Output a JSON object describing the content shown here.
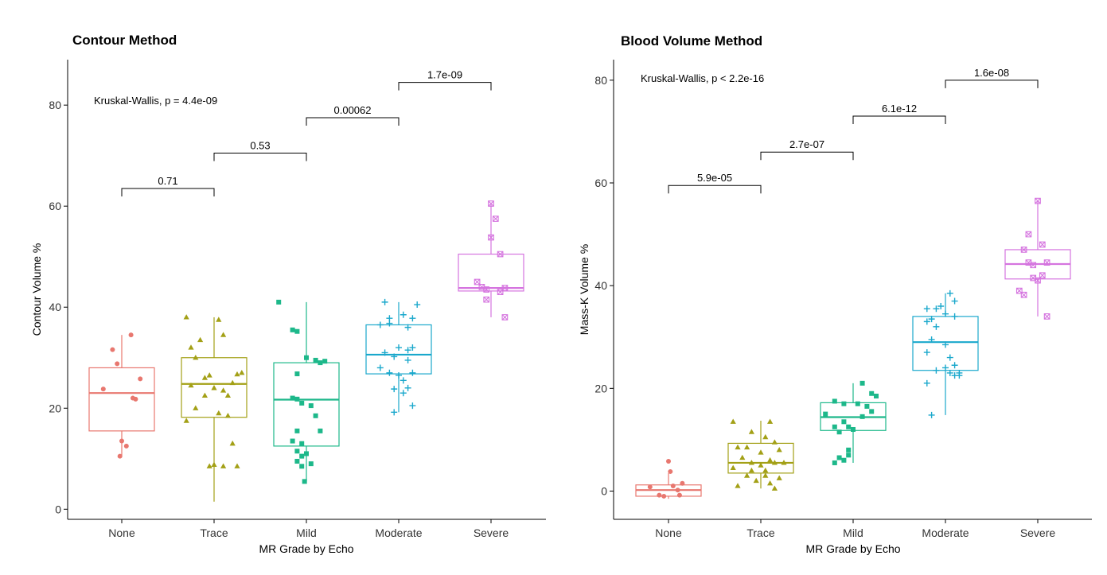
{
  "chart_data": [
    {
      "type": "boxplot",
      "title": "Contour Method",
      "xlabel": "MR Grade by Echo",
      "ylabel": "Contour Volume %",
      "ylim": [
        -2,
        89
      ],
      "yticks": [
        0,
        20,
        40,
        60,
        80
      ],
      "categories": [
        "None",
        "Trace",
        "Mild",
        "Moderate",
        "Severe"
      ],
      "colors": [
        "#E8776F",
        "#A3A016",
        "#1DB88A",
        "#1AA8CC",
        "#D574DF"
      ],
      "markers": [
        "circle",
        "triangle",
        "square",
        "plus",
        "boxx"
      ],
      "test_label": "Kruskal-Wallis, p = 4.4e-09",
      "boxes": [
        {
          "q1": 15.5,
          "median": 23.0,
          "q3": 28.0,
          "whisker_low": 10.5,
          "whisker_high": 34.5
        },
        {
          "q1": 18.2,
          "median": 24.8,
          "q3": 30.0,
          "whisker_low": 1.5,
          "whisker_high": 38.0
        },
        {
          "q1": 12.5,
          "median": 21.7,
          "q3": 29.0,
          "whisker_low": 5.5,
          "whisker_high": 41.0
        },
        {
          "q1": 26.8,
          "median": 30.6,
          "q3": 36.5,
          "whisker_low": 19.2,
          "whisker_high": 41.0
        },
        {
          "q1": 43.2,
          "median": 43.8,
          "q3": 50.5,
          "whisker_low": 38.0,
          "whisker_high": 60.5
        }
      ],
      "points": [
        [
          [
            -0.2,
            23.8
          ],
          [
            -0.1,
            31.6
          ],
          [
            0.0,
            13.5
          ],
          [
            0.1,
            34.5
          ],
          [
            0.15,
            21.8
          ],
          [
            0.2,
            25.8
          ],
          [
            -0.05,
            28.8
          ],
          [
            0.05,
            12.5
          ],
          [
            -0.02,
            10.5
          ],
          [
            0.12,
            22.0
          ]
        ],
        [
          [
            -0.3,
            38.0
          ],
          [
            -0.25,
            32.0
          ],
          [
            -0.2,
            30.0
          ],
          [
            -0.15,
            33.5
          ],
          [
            -0.1,
            26.0
          ],
          [
            -0.05,
            26.5
          ],
          [
            0.05,
            37.5
          ],
          [
            0.1,
            34.5
          ],
          [
            0.15,
            22.5
          ],
          [
            0.2,
            25.0
          ],
          [
            0.25,
            26.7
          ],
          [
            0.3,
            27.0
          ],
          [
            -0.3,
            17.5
          ],
          [
            -0.25,
            24.5
          ],
          [
            -0.2,
            20.0
          ],
          [
            -0.1,
            22.5
          ],
          [
            0.0,
            24.0
          ],
          [
            0.05,
            19.0
          ],
          [
            0.1,
            23.5
          ],
          [
            0.15,
            18.5
          ],
          [
            0.2,
            13.0
          ],
          [
            0.25,
            8.5
          ],
          [
            -0.05,
            8.5
          ],
          [
            0.0,
            8.8
          ],
          [
            0.1,
            8.5
          ]
        ],
        [
          [
            -0.3,
            41.0
          ],
          [
            -0.15,
            35.5
          ],
          [
            -0.1,
            35.2
          ],
          [
            -0.1,
            26.8
          ],
          [
            -0.15,
            22.0
          ],
          [
            -0.1,
            21.8
          ],
          [
            0.0,
            30.0
          ],
          [
            0.1,
            29.5
          ],
          [
            0.15,
            29.0
          ],
          [
            0.2,
            29.3
          ],
          [
            -0.05,
            21.0
          ],
          [
            0.05,
            20.5
          ],
          [
            0.1,
            18.5
          ],
          [
            -0.1,
            15.5
          ],
          [
            0.15,
            15.5
          ],
          [
            -0.15,
            13.5
          ],
          [
            -0.05,
            13.0
          ],
          [
            -0.1,
            11.5
          ],
          [
            -0.05,
            10.5
          ],
          [
            0.0,
            11.0
          ],
          [
            -0.1,
            9.5
          ],
          [
            -0.05,
            8.5
          ],
          [
            0.05,
            9.0
          ],
          [
            -0.02,
            5.5
          ]
        ],
        [
          [
            -0.15,
            41.0
          ],
          [
            0.2,
            40.5
          ],
          [
            0.05,
            38.5
          ],
          [
            -0.1,
            37.8
          ],
          [
            0.15,
            37.8
          ],
          [
            -0.2,
            36.5
          ],
          [
            -0.1,
            36.8
          ],
          [
            0.1,
            36.0
          ],
          [
            0.0,
            32.0
          ],
          [
            0.15,
            32.0
          ],
          [
            0.1,
            31.5
          ],
          [
            -0.15,
            31.0
          ],
          [
            -0.05,
            30.2
          ],
          [
            0.1,
            29.5
          ],
          [
            -0.2,
            28.0
          ],
          [
            -0.1,
            27.0
          ],
          [
            0.15,
            27.0
          ],
          [
            0.0,
            26.5
          ],
          [
            0.05,
            25.5
          ],
          [
            -0.05,
            23.8
          ],
          [
            0.1,
            24.0
          ],
          [
            0.05,
            23.0
          ],
          [
            0.15,
            20.5
          ],
          [
            -0.05,
            19.2
          ]
        ],
        [
          [
            0.0,
            60.5
          ],
          [
            0.05,
            57.5
          ],
          [
            0.0,
            53.8
          ],
          [
            0.1,
            50.5
          ],
          [
            -0.15,
            45.0
          ],
          [
            -0.1,
            44.0
          ],
          [
            -0.05,
            43.5
          ],
          [
            0.15,
            43.8
          ],
          [
            0.1,
            43.0
          ],
          [
            -0.05,
            41.5
          ],
          [
            0.15,
            38.0
          ]
        ]
      ],
      "brackets": [
        {
          "from": 0,
          "to": 1,
          "y": 63.5,
          "label": "0.71"
        },
        {
          "from": 1,
          "to": 2,
          "y": 70.5,
          "label": "0.53"
        },
        {
          "from": 2,
          "to": 3,
          "y": 77.5,
          "label": "0.00062"
        },
        {
          "from": 3,
          "to": 4,
          "y": 84.5,
          "label": "1.7e-09"
        }
      ]
    },
    {
      "type": "boxplot",
      "title": "Blood Volume Method",
      "xlabel": "MR Grade by Echo",
      "ylabel": "Mass-K Volume %",
      "ylim": [
        -5.5,
        84
      ],
      "yticks": [
        0,
        20,
        40,
        60,
        80
      ],
      "categories": [
        "None",
        "Trace",
        "Mild",
        "Moderate",
        "Severe"
      ],
      "colors": [
        "#E8776F",
        "#A3A016",
        "#1DB88A",
        "#1AA8CC",
        "#D574DF"
      ],
      "markers": [
        "circle",
        "triangle",
        "square",
        "plus",
        "boxx"
      ],
      "test_label": "Kruskal-Wallis, p < 2.2e-16",
      "boxes": [
        {
          "q1": -1.0,
          "median": 0.2,
          "q3": 1.2,
          "whisker_low": -1.5,
          "whisker_high": 3.5
        },
        {
          "q1": 3.5,
          "median": 5.5,
          "q3": 9.3,
          "whisker_low": 0.5,
          "whisker_high": 13.7
        },
        {
          "q1": 11.8,
          "median": 14.4,
          "q3": 17.2,
          "whisker_low": 5.5,
          "whisker_high": 21.0
        },
        {
          "q1": 23.5,
          "median": 29.0,
          "q3": 34.0,
          "whisker_low": 14.8,
          "whisker_high": 38.5
        },
        {
          "q1": 41.3,
          "median": 44.2,
          "q3": 47.0,
          "whisker_low": 34.0,
          "whisker_high": 56.5
        }
      ],
      "points": [
        [
          [
            0.0,
            5.8
          ],
          [
            0.02,
            3.8
          ],
          [
            -0.2,
            0.8
          ],
          [
            0.05,
            1.0
          ],
          [
            0.15,
            1.5
          ],
          [
            -0.1,
            -0.8
          ],
          [
            0.12,
            -0.8
          ],
          [
            -0.05,
            -1.0
          ],
          [
            0.1,
            0.2
          ]
        ],
        [
          [
            -0.3,
            13.5
          ],
          [
            0.1,
            13.5
          ],
          [
            -0.1,
            11.5
          ],
          [
            0.05,
            10.5
          ],
          [
            0.15,
            9.5
          ],
          [
            -0.25,
            8.5
          ],
          [
            -0.15,
            8.5
          ],
          [
            0.2,
            8.0
          ],
          [
            0.0,
            7.5
          ],
          [
            -0.2,
            6.5
          ],
          [
            0.1,
            6.0
          ],
          [
            0.15,
            5.5
          ],
          [
            0.25,
            5.5
          ],
          [
            -0.3,
            4.5
          ],
          [
            -0.1,
            4.0
          ],
          [
            0.0,
            5.0
          ],
          [
            0.05,
            4.0
          ],
          [
            -0.15,
            3.0
          ],
          [
            0.2,
            2.5
          ],
          [
            -0.05,
            2.0
          ],
          [
            0.1,
            1.5
          ],
          [
            -0.25,
            1.0
          ],
          [
            0.15,
            0.5
          ],
          [
            -0.1,
            5.5
          ],
          [
            0.05,
            3.0
          ]
        ],
        [
          [
            0.1,
            21.0
          ],
          [
            0.2,
            19.0
          ],
          [
            0.25,
            18.5
          ],
          [
            -0.2,
            17.5
          ],
          [
            -0.1,
            17.0
          ],
          [
            0.05,
            17.0
          ],
          [
            0.15,
            16.5
          ],
          [
            0.2,
            15.5
          ],
          [
            -0.3,
            15.0
          ],
          [
            0.1,
            14.5
          ],
          [
            -0.1,
            13.5
          ],
          [
            -0.2,
            12.5
          ],
          [
            0.0,
            12.0
          ],
          [
            -0.15,
            11.5
          ],
          [
            -0.05,
            12.5
          ],
          [
            -0.05,
            8.0
          ],
          [
            -0.15,
            6.5
          ],
          [
            -0.1,
            6.0
          ],
          [
            -0.05,
            7.0
          ],
          [
            -0.2,
            5.5
          ]
        ],
        [
          [
            0.05,
            38.5
          ],
          [
            0.1,
            37.0
          ],
          [
            -0.2,
            35.5
          ],
          [
            -0.1,
            35.5
          ],
          [
            -0.05,
            36.0
          ],
          [
            0.0,
            34.5
          ],
          [
            -0.15,
            33.5
          ],
          [
            0.1,
            34.0
          ],
          [
            -0.2,
            33.0
          ],
          [
            -0.1,
            32.0
          ],
          [
            -0.15,
            29.5
          ],
          [
            0.0,
            28.5
          ],
          [
            -0.2,
            27.0
          ],
          [
            0.05,
            26.0
          ],
          [
            0.1,
            24.5
          ],
          [
            0.0,
            24.0
          ],
          [
            -0.1,
            23.5
          ],
          [
            0.15,
            23.0
          ],
          [
            0.05,
            23.0
          ],
          [
            0.1,
            22.5
          ],
          [
            0.15,
            22.5
          ],
          [
            -0.2,
            21.0
          ],
          [
            -0.15,
            14.8
          ]
        ],
        [
          [
            0.0,
            56.5
          ],
          [
            -0.1,
            50.0
          ],
          [
            0.05,
            48.0
          ],
          [
            -0.15,
            47.0
          ],
          [
            -0.1,
            44.5
          ],
          [
            -0.05,
            44.0
          ],
          [
            0.1,
            44.5
          ],
          [
            0.05,
            42.0
          ],
          [
            -0.2,
            39.0
          ],
          [
            -0.15,
            38.2
          ],
          [
            -0.05,
            41.5
          ],
          [
            0.0,
            41.0
          ],
          [
            0.1,
            34.0
          ]
        ]
      ],
      "brackets": [
        {
          "from": 0,
          "to": 1,
          "y": 59.5,
          "label": "5.9e-05"
        },
        {
          "from": 1,
          "to": 2,
          "y": 66.0,
          "label": "2.7e-07"
        },
        {
          "from": 2,
          "to": 3,
          "y": 73.0,
          "label": "6.1e-12"
        },
        {
          "from": 3,
          "to": 4,
          "y": 80.0,
          "label": "1.6e-08"
        }
      ]
    }
  ]
}
